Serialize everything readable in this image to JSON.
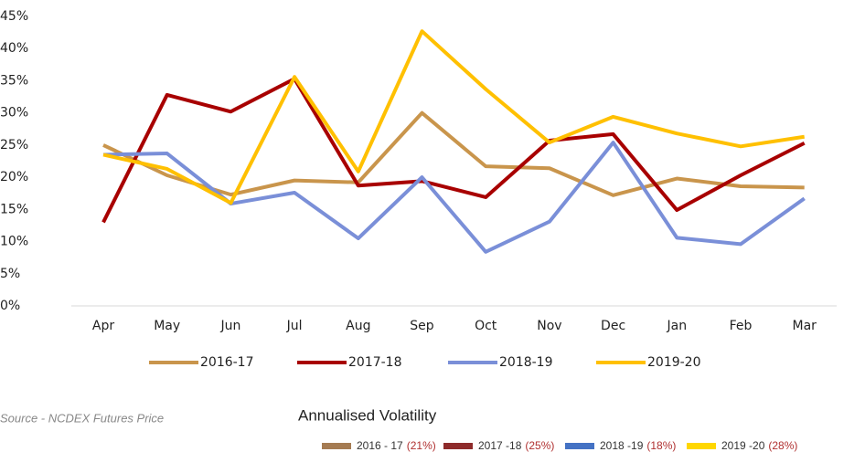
{
  "chart_data": {
    "type": "line",
    "categories": [
      "Apr",
      "May",
      "Jun",
      "Jul",
      "Aug",
      "Sep",
      "Oct",
      "Nov",
      "Dec",
      "Jan",
      "Feb",
      "Mar"
    ],
    "series": [
      {
        "name": "2016-17",
        "color": "#C9954C",
        "values": [
          25,
          20.3,
          17.3,
          19.5,
          19.2,
          30,
          21.7,
          21.4,
          17.2,
          19.8,
          18.6,
          18.4
        ]
      },
      {
        "name": "2017-18",
        "color": "#A80000",
        "values": [
          13,
          32.8,
          30.2,
          35.3,
          18.7,
          19.4,
          16.9,
          25.7,
          26.7,
          14.9,
          20.3,
          25.3
        ]
      },
      {
        "name": "2018-19",
        "color": "#7A8FD8",
        "values": [
          23.5,
          23.7,
          15.9,
          17.6,
          10.5,
          20,
          8.4,
          13.1,
          25.4,
          10.6,
          9.6,
          16.7
        ]
      },
      {
        "name": "2019-20",
        "color": "#FFC000",
        "values": [
          23.5,
          21.3,
          16,
          35.6,
          20.9,
          42.7,
          33.7,
          25.4,
          29.4,
          26.8,
          24.8,
          26.3
        ]
      }
    ],
    "ylim": [
      0,
      45
    ],
    "yticks": [
      {
        "value": 0,
        "label": "0%"
      },
      {
        "value": 5,
        "label": "5%"
      },
      {
        "value": 10,
        "label": "10%"
      },
      {
        "value": 15,
        "label": "15%"
      },
      {
        "value": 20,
        "label": "20%"
      },
      {
        "value": 25,
        "label": "25%"
      },
      {
        "value": 30,
        "label": "30%"
      },
      {
        "value": 35,
        "label": "35%"
      },
      {
        "value": 40,
        "label": "40%"
      },
      {
        "value": 45,
        "label": "45%"
      }
    ],
    "legend": "bottom"
  },
  "footer": {
    "source": "Source - NCDEX Futures Price",
    "title": "Annualised Volatility",
    "items": [
      {
        "label": "2016 - 17",
        "value": "(21%)",
        "color": "#A57B52"
      },
      {
        "label": "2017 -18",
        "value": "(25%)",
        "color": "#8E2B2B"
      },
      {
        "label": "2018 -19",
        "value": "(18%)",
        "color": "#4472C4"
      },
      {
        "label": "2019 -20",
        "value": "(28%)",
        "color": "#FFD700"
      }
    ]
  }
}
